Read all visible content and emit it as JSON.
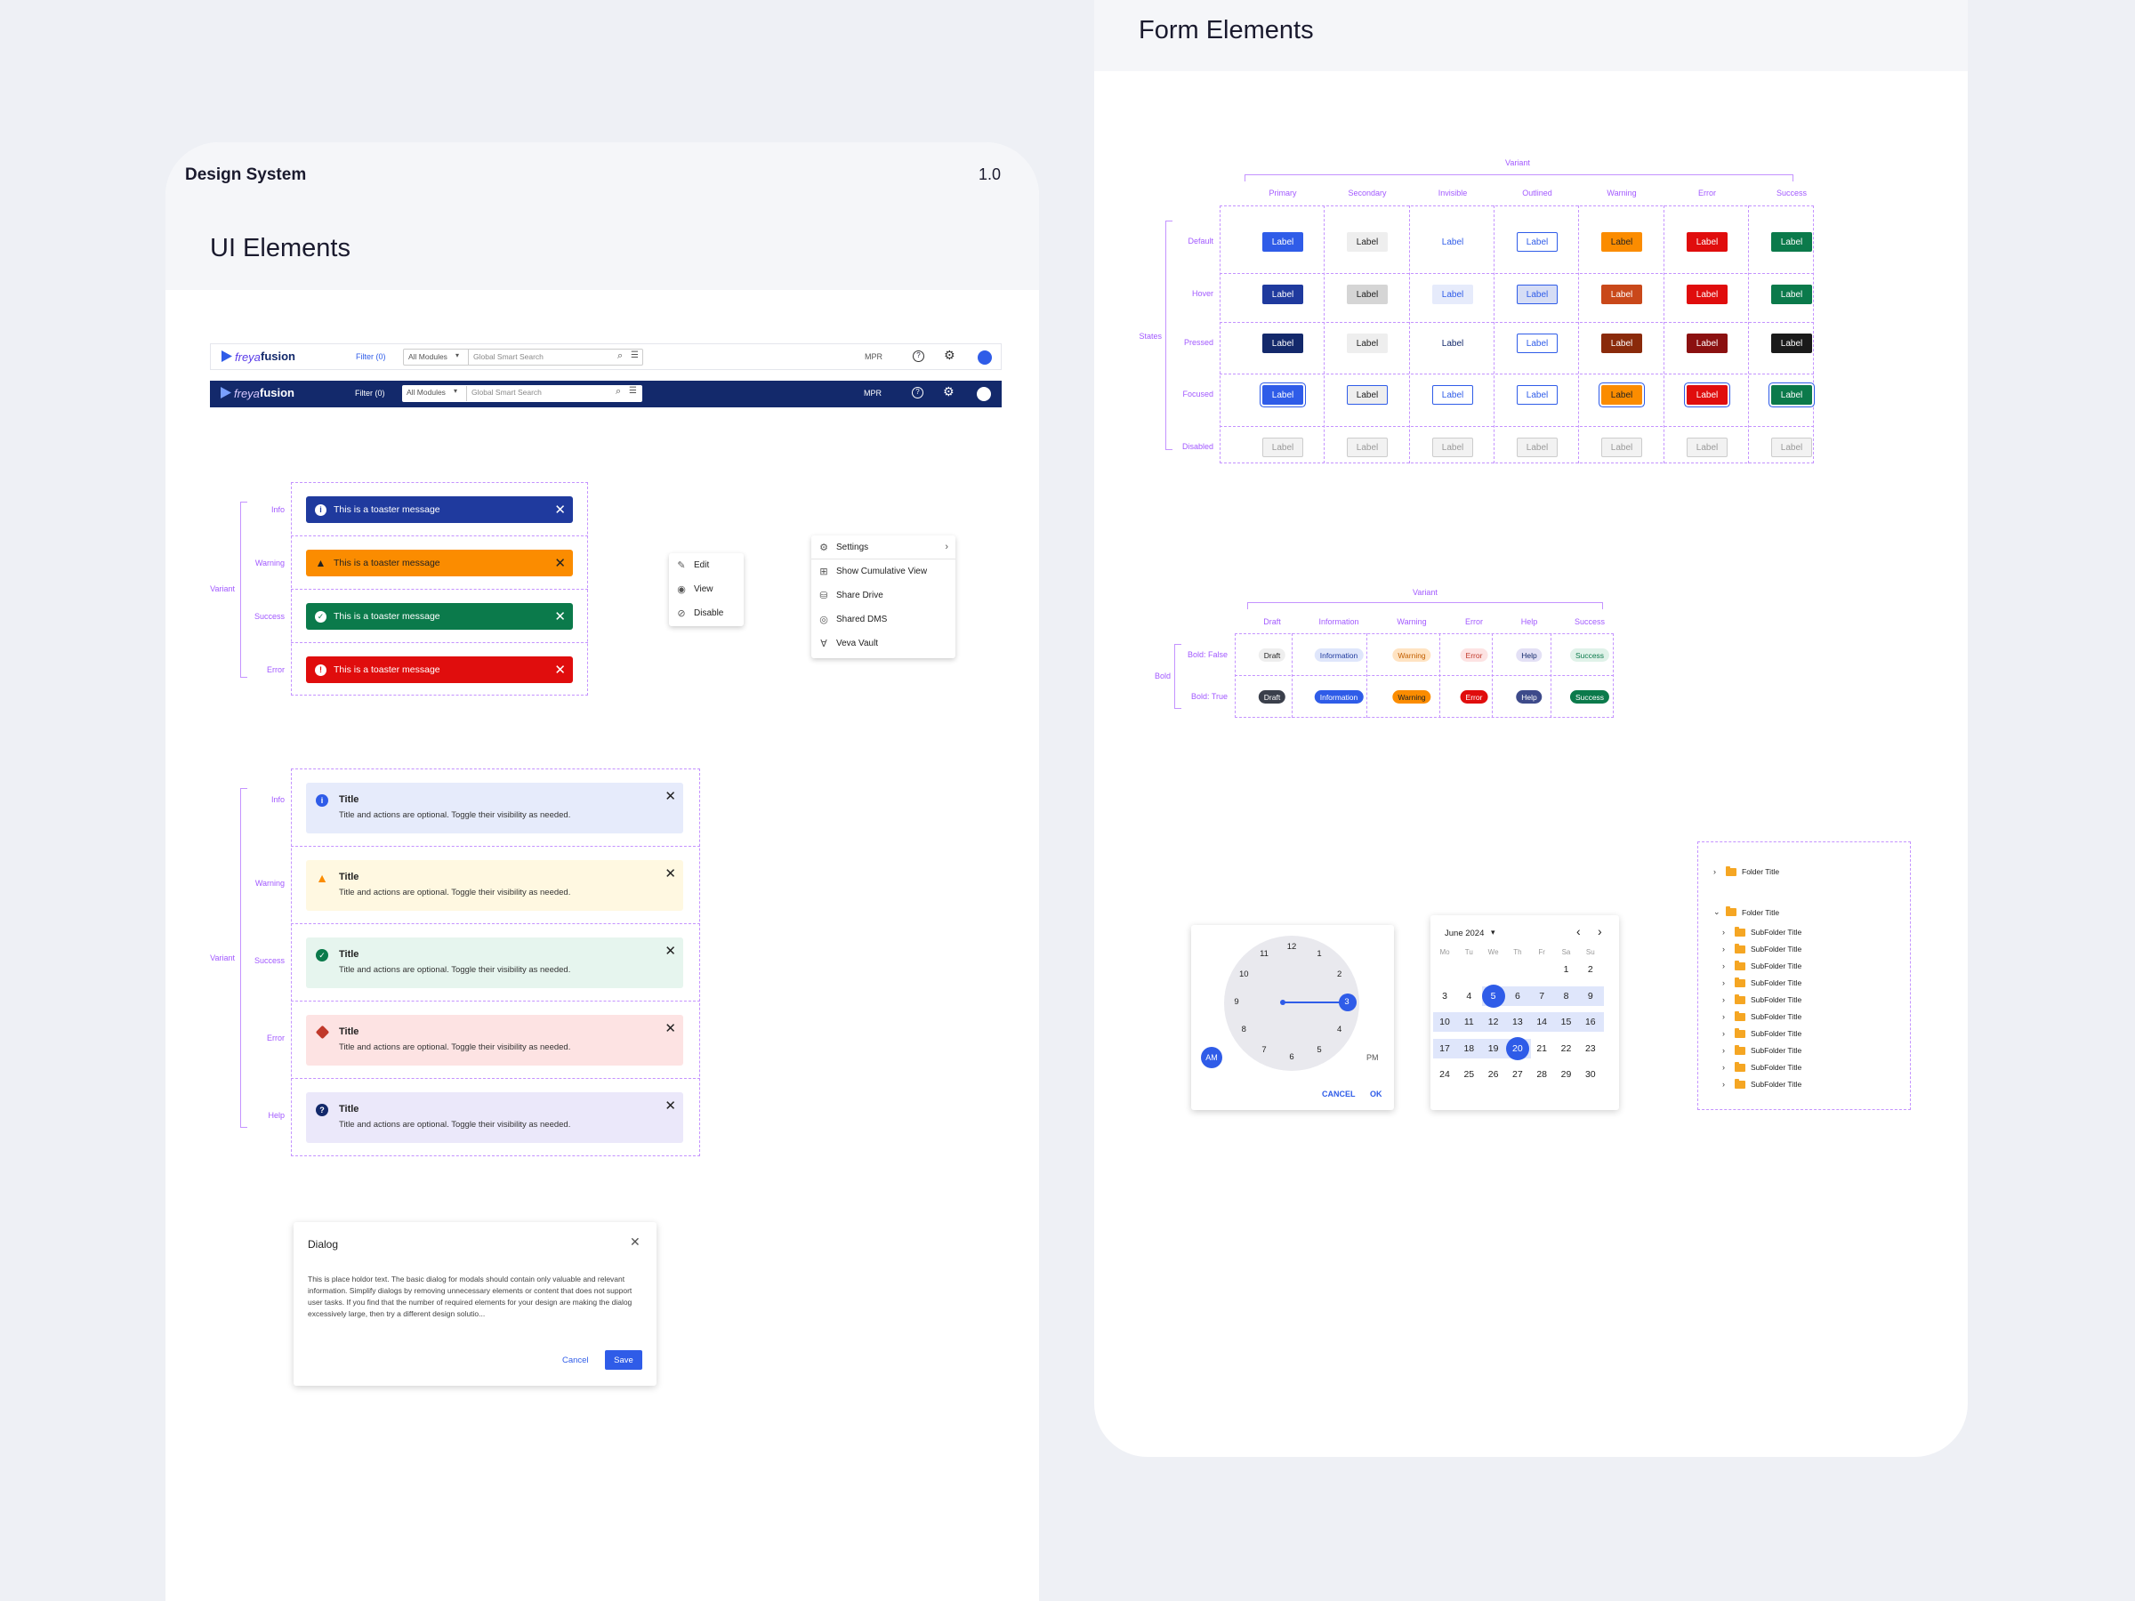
{
  "left_card": {
    "brand": "Design System",
    "version": "1.0",
    "section_title": "UI Elements"
  },
  "right_card": {
    "section_title": "Form Elements"
  },
  "navbar": {
    "logo_freya": "freya",
    "logo_fusion": "fusion",
    "filter": "Filter (0)",
    "module_select": "All Modules",
    "search_placeholder": "Global Smart Search",
    "mpr": "MPR"
  },
  "toasts": {
    "axis_label": "Variant",
    "message": "This is a toaster message",
    "variants": [
      "Info",
      "Warning",
      "Success",
      "Error"
    ]
  },
  "mini_menu": {
    "items": [
      "Edit",
      "View",
      "Disable"
    ]
  },
  "settings_menu": {
    "items": [
      "Settings",
      "Show Cumulative View",
      "Share Drive",
      "Shared DMS",
      "Veva Vault"
    ]
  },
  "alerts": {
    "axis_label": "Variant",
    "title": "Title",
    "description": "Title and actions are optional. Toggle their visibility as needed.",
    "variants": [
      "Info",
      "Warning",
      "Success",
      "Error",
      "Help"
    ]
  },
  "dialog": {
    "title": "Dialog",
    "body": "This is place holdor text. The basic dialog for modals should contain only valuable and relevant information. Simplify dialogs by removing unnecessary elements or content that does not support user tasks. If you find that the number of required elements for your design are making the dialog excessively large, then try a different design solutio...",
    "cancel": "Cancel",
    "save": "Save"
  },
  "buttons_matrix": {
    "variant_label": "Variant",
    "states_label": "States",
    "columns": [
      "Primary",
      "Secondary",
      "Invisible",
      "Outlined",
      "Warning",
      "Error",
      "Success"
    ],
    "rows": [
      "Default",
      "Hover",
      "Pressed",
      "Focused",
      "Disabled"
    ],
    "button_label": "Label"
  },
  "chips_matrix": {
    "variant_label": "Variant",
    "bold_label": "Bold",
    "columns": [
      "Draft",
      "Information",
      "Warning",
      "Error",
      "Help",
      "Success"
    ],
    "rows": [
      "Bold: False",
      "Bold: True"
    ],
    "chip_labels": [
      "Draft",
      "Information",
      "Warning",
      "Error",
      "Help",
      "Success"
    ]
  },
  "clock": {
    "numbers": [
      "12",
      "1",
      "2",
      "3",
      "4",
      "5",
      "6",
      "7",
      "8",
      "9",
      "10",
      "11"
    ],
    "am": "AM",
    "pm": "PM",
    "cancel": "CANCEL",
    "ok": "OK"
  },
  "calendar": {
    "month": "June 2024",
    "weekdays": [
      "Mo",
      "Tu",
      "We",
      "Th",
      "Fr",
      "Sa",
      "Su"
    ],
    "days": [
      "1",
      "2",
      "3",
      "4",
      "5",
      "6",
      "7",
      "8",
      "9",
      "10",
      "11",
      "12",
      "13",
      "14",
      "15",
      "16",
      "17",
      "18",
      "19",
      "20",
      "21",
      "22",
      "23",
      "24",
      "25",
      "26",
      "27",
      "28",
      "29",
      "30"
    ],
    "selected_start": "5",
    "selected_end": "20"
  },
  "tree": {
    "folder_title": "Folder Title",
    "subfolder_title": "SubFolder Title",
    "subfolder_count": 10
  },
  "colors": {
    "primary": "#2f5ce8",
    "navy": "#13296b",
    "warning": "#fb8c00",
    "success": "#0b7a4b",
    "error": "#e00d0d",
    "accent": "#a259ff"
  }
}
